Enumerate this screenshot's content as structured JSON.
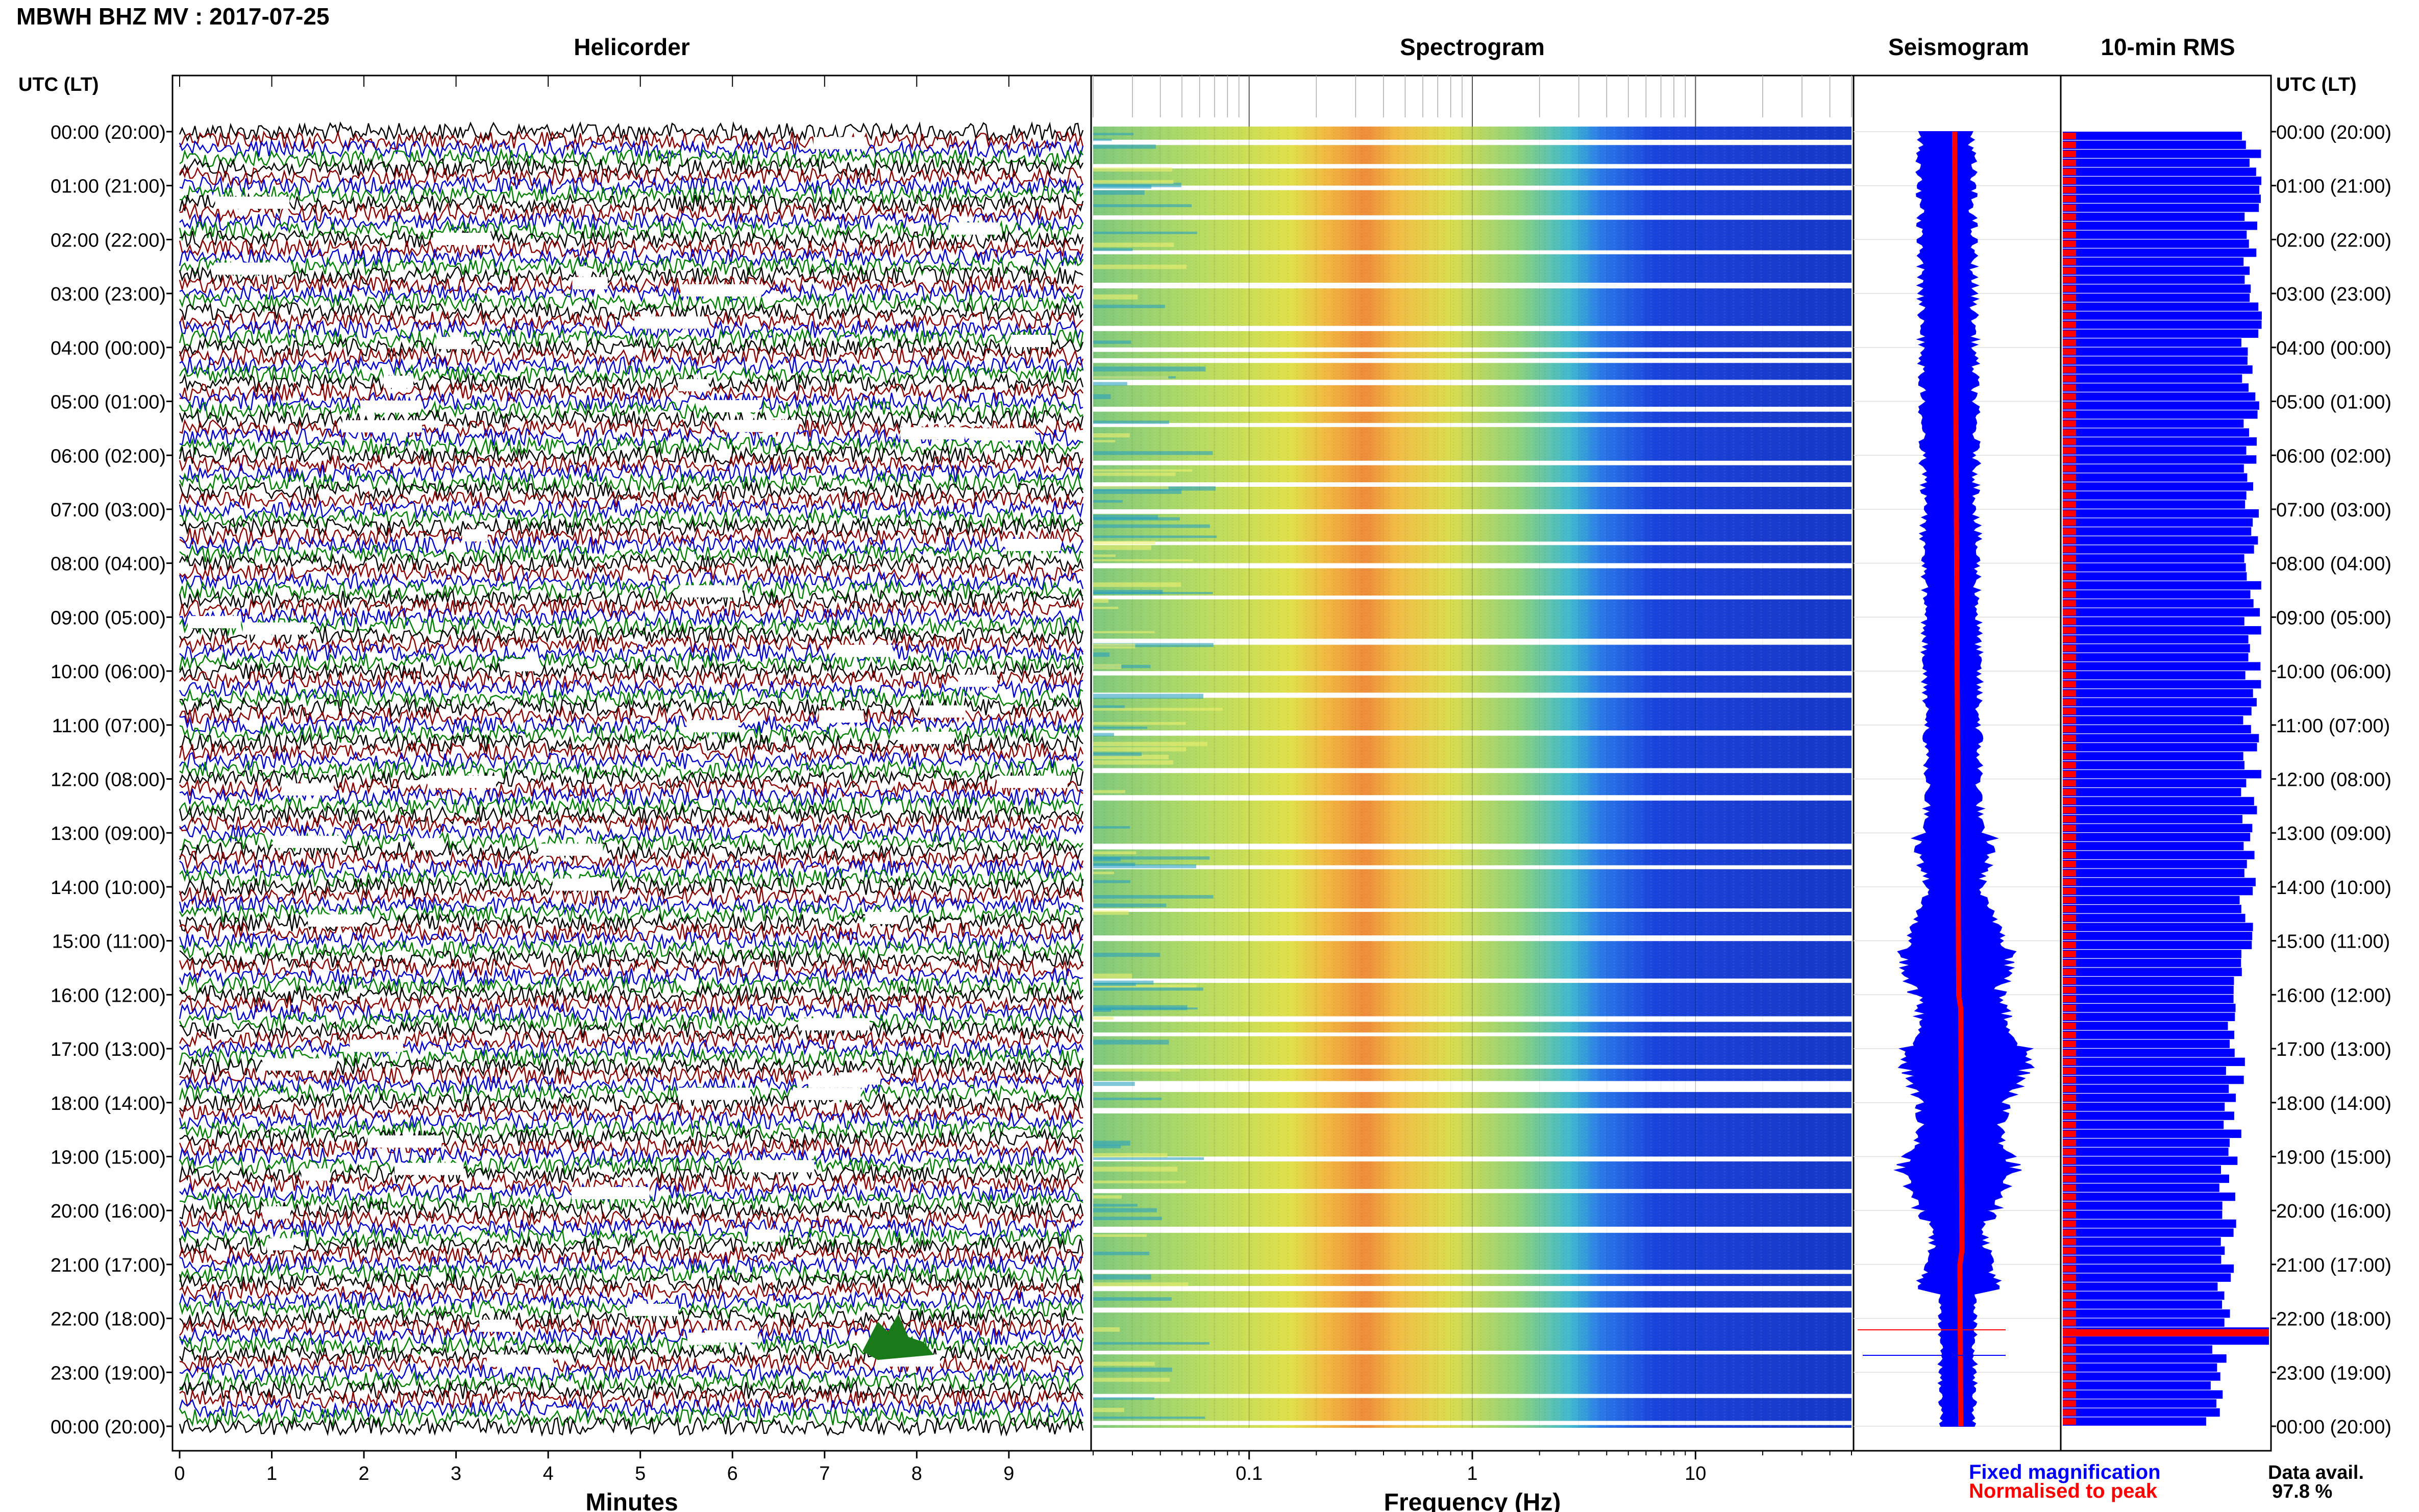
{
  "header": {
    "title": "MBWH BHZ MV : 2017-07-25",
    "utc_label_left": "UTC (LT)",
    "utc_label_right": "UTC (LT)"
  },
  "panels": {
    "helicorder": "Helicorder",
    "spectrogram": "Spectrogram",
    "seismogram": "Seismogram",
    "rms": "10-min RMS"
  },
  "time_labels": [
    "00:00 (20:00)",
    "01:00 (21:00)",
    "02:00 (22:00)",
    "03:00 (23:00)",
    "04:00 (00:00)",
    "05:00 (01:00)",
    "06:00 (02:00)",
    "07:00 (03:00)",
    "08:00 (04:00)",
    "09:00 (05:00)",
    "10:00 (06:00)",
    "11:00 (07:00)",
    "12:00 (08:00)",
    "13:00 (09:00)",
    "14:00 (10:00)",
    "15:00 (11:00)",
    "16:00 (12:00)",
    "17:00 (13:00)",
    "18:00 (14:00)",
    "19:00 (15:00)",
    "20:00 (16:00)",
    "21:00 (17:00)",
    "22:00 (18:00)",
    "23:00 (19:00)",
    "00:00 (20:00)"
  ],
  "legend": {
    "fixed": "Fixed magnification",
    "normalised": "Normalised to peak",
    "avail_label": "Data avail.",
    "avail_value": "97.8 %"
  },
  "colors": {
    "trace_cycle": [
      "#000000",
      "#8b0000",
      "#0000cd",
      "#008000"
    ],
    "seismo_fixed": "#0000ff",
    "seismo_norm": "#ff0000",
    "rms_bar": "#0000ff",
    "rms_norm": "#ff0000"
  },
  "chart_data": [
    {
      "type": "line",
      "panel": "helicorder",
      "xlabel": "Minutes",
      "x_ticks": [
        0,
        1,
        2,
        3,
        4,
        5,
        6,
        7,
        8,
        9
      ],
      "xlim": [
        0,
        10
      ],
      "lines_per_hour": 6,
      "hours": 24
    },
    {
      "type": "heatmap",
      "panel": "spectrogram",
      "xlabel": "Frequency (Hz)",
      "x_scale": "log",
      "xlim": [
        0.02,
        50
      ],
      "x_ticks": [
        0.1,
        1,
        10
      ],
      "x_tick_labels": [
        "0.1",
        "1",
        "10"
      ],
      "peak_band_hz": [
        0.3,
        0.6
      ]
    },
    {
      "type": "line",
      "panel": "seismogram",
      "series": [
        {
          "name": "Fixed magnification"
        },
        {
          "name": "Normalised to peak"
        }
      ]
    },
    {
      "type": "bar",
      "panel": "10-min RMS",
      "orientation": "horizontal",
      "bars_per_hour": 6,
      "notable_peak_hour": 22.2
    }
  ]
}
